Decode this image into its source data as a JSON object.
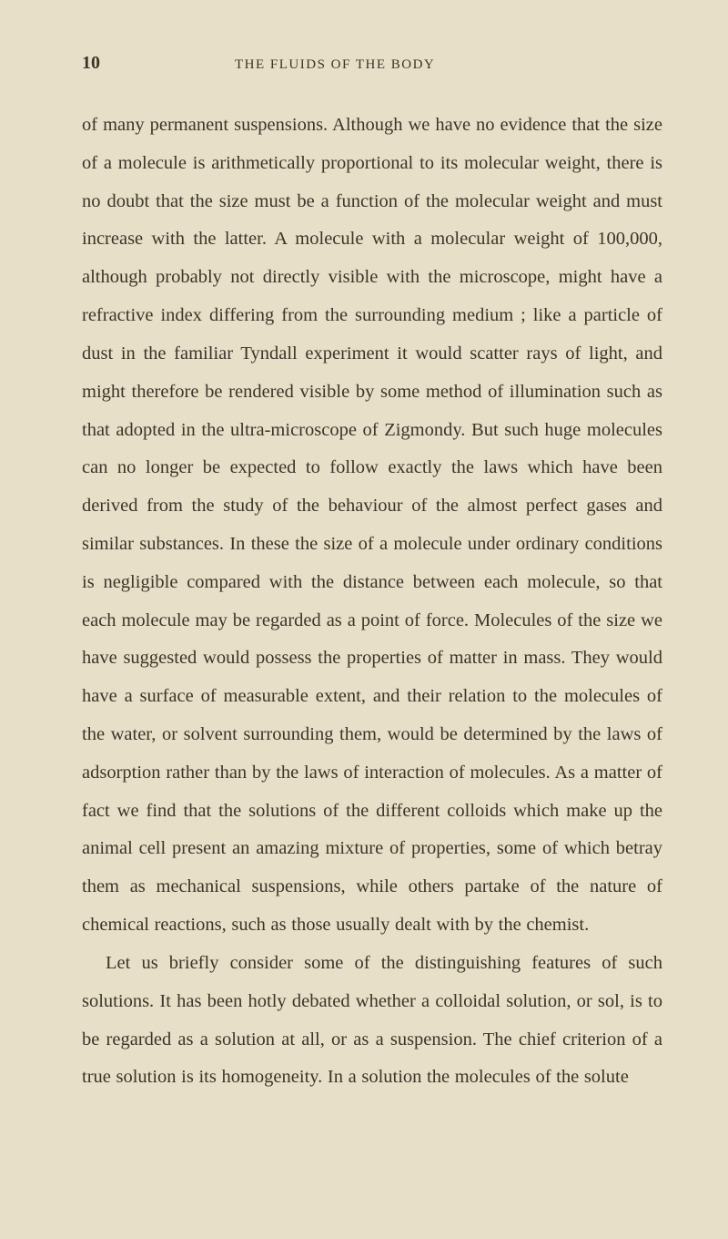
{
  "page": {
    "number": "10",
    "running_title": "THE FLUIDS OF THE BODY",
    "background_color": "#e8dfc8",
    "text_color": "#3a3528",
    "body_fontsize": 20.5,
    "header_fontsize": 15,
    "pagenum_fontsize": 20,
    "line_height": 2.04,
    "paragraphs": [
      {
        "indent": false,
        "text": "of many permanent suspensions. Although we have no evidence that the size of a molecule is arithmetically proportional to its molecular weight, there is no doubt that the size must be a function of the molecular weight and must increase with the latter. A molecule with a molecular weight of 100,000, although probably not directly visible with the microscope, might have a refractive index differing from the surrounding medium ; like a particle of dust in the familiar Tyndall experiment it would scatter rays of light, and might therefore be rendered visible by some method of illumination such as that adopted in the ultra-microscope of Zigmondy. But such huge molecules can no longer be expected to follow exactly the laws which have been derived from the study of the behaviour of the almost perfect gases and similar substances. In these the size of a molecule under ordinary conditions is negligible compared with the distance between each molecule, so that each molecule may be regarded as a point of force. Molecules of the size we have suggested would possess the properties of matter in mass. They would have a surface of measurable extent, and their relation to the molecules of the water, or solvent surrounding them, would be determined by the laws of adsorption rather than by the laws of interaction of molecules. As a matter of fact we find that the solutions of the different colloids which make up the animal cell present an amazing mixture of properties, some of which betray them as mechanical suspensions, while others partake of the nature of chemical reactions, such as those usually dealt with by the chemist."
      },
      {
        "indent": true,
        "text": "Let us briefly consider some of the distinguishing features of such solutions. It has been hotly debated whether a colloidal solution, or sol, is to be regarded as a solution at all, or as a suspension. The chief criterion of a true solution is its homogeneity. In a solution the molecules of the solute"
      }
    ]
  }
}
